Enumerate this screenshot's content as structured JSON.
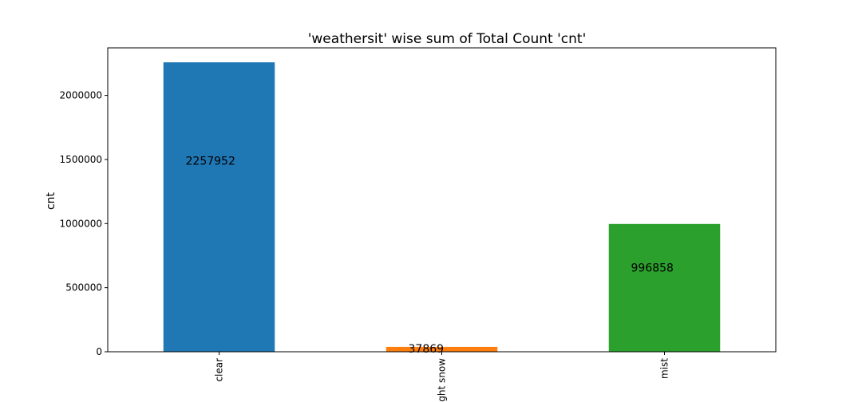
{
  "chart_data": {
    "type": "bar",
    "title": "'weathersit' wise sum of Total Count 'cnt'",
    "xlabel": "",
    "ylabel": "cnt",
    "categories": [
      "clear",
      "light snow",
      "mist"
    ],
    "values": [
      2257952,
      37869,
      996858
    ],
    "data_labels": [
      "2257952",
      "37869",
      "996858"
    ],
    "colors": [
      "#1f77b4",
      "#ff7f0e",
      "#2ca02c"
    ],
    "ylim": [
      0,
      2370850
    ],
    "yticks": [
      0,
      500000,
      1000000,
      1500000,
      2000000
    ],
    "ytick_labels": [
      "0",
      "500000",
      "1000000",
      "1500000",
      "2000000"
    ],
    "grid": false,
    "legend": "none"
  }
}
